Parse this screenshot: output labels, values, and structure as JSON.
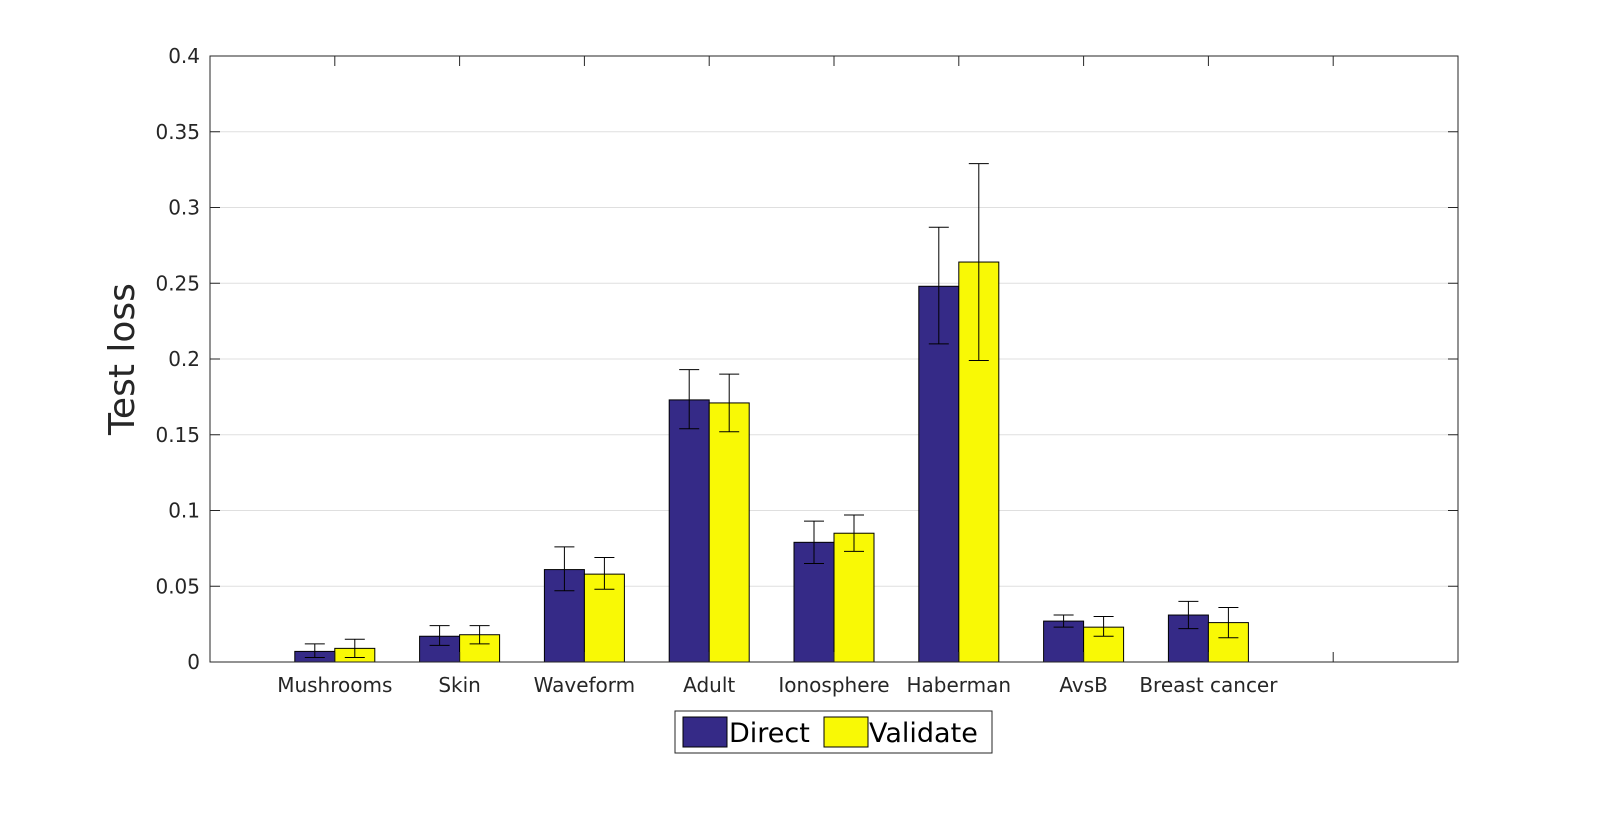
{
  "chart_data": {
    "type": "bar",
    "title": "",
    "xlabel": "",
    "ylabel": "Test loss",
    "ylim": [
      0,
      0.4
    ],
    "yticks": [
      0,
      0.05,
      0.1,
      0.15,
      0.2,
      0.25,
      0.3,
      0.35,
      0.4
    ],
    "ytick_labels": [
      "0",
      "0.05",
      "0.1",
      "0.15",
      "0.2",
      "0.25",
      "0.3",
      "0.35",
      "0.4"
    ],
    "grid": "y",
    "categories": [
      "Mushrooms",
      "Skin",
      "Waveform",
      "Adult",
      "Ionosphere",
      "Haberman",
      "AvsB",
      "Breast cancer"
    ],
    "category_slots": 9,
    "series": [
      {
        "name": "Direct",
        "color": "#352a87",
        "values": [
          0.007,
          0.017,
          0.061,
          0.173,
          0.079,
          0.248,
          0.027,
          0.031
        ],
        "err_low": [
          0.003,
          0.011,
          0.047,
          0.154,
          0.065,
          0.21,
          0.023,
          0.022
        ],
        "err_high": [
          0.012,
          0.024,
          0.076,
          0.193,
          0.093,
          0.287,
          0.031,
          0.04
        ]
      },
      {
        "name": "Validate",
        "color": "#f9f905",
        "values": [
          0.009,
          0.018,
          0.058,
          0.171,
          0.085,
          0.264,
          0.023,
          0.026
        ],
        "err_low": [
          0.003,
          0.012,
          0.048,
          0.152,
          0.073,
          0.199,
          0.017,
          0.016
        ],
        "err_high": [
          0.015,
          0.024,
          0.069,
          0.19,
          0.097,
          0.329,
          0.03,
          0.036
        ]
      }
    ],
    "legend": {
      "position": "bottom-center",
      "orientation": "horizontal"
    }
  }
}
